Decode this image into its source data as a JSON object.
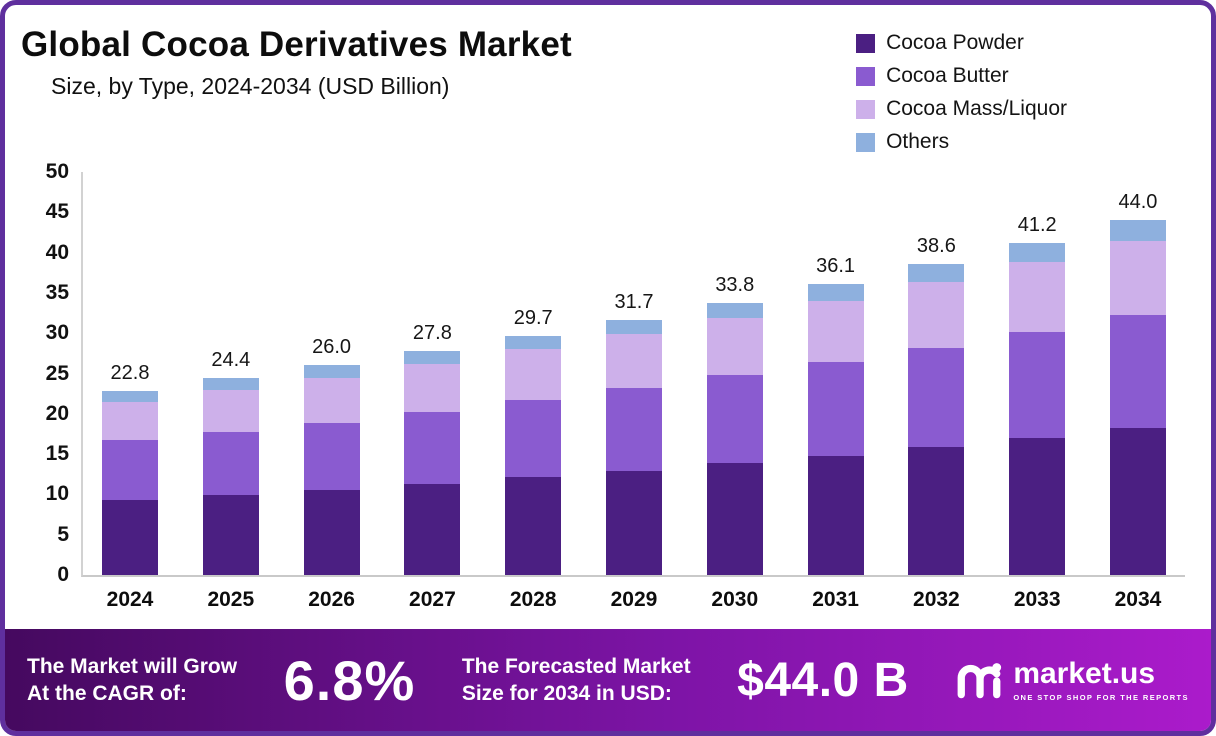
{
  "frame": {
    "border_color": "#5f2f9e",
    "background": "#ffffff"
  },
  "header": {
    "title": "Global Cocoa Derivatives Market",
    "subtitle": "Size, by Type, 2024-2034 (USD Billion)"
  },
  "chart_data": {
    "type": "bar",
    "stacked": true,
    "title": "Global Cocoa Derivatives Market Size, by Type, 2024-2034 (USD Billion)",
    "categories": [
      "2024",
      "2025",
      "2026",
      "2027",
      "2028",
      "2029",
      "2030",
      "2031",
      "2032",
      "2033",
      "2034"
    ],
    "series": [
      {
        "name": "Cocoa Powder",
        "color": "#4b1f82",
        "values": [
          9.3,
          9.9,
          10.6,
          11.3,
          12.1,
          12.9,
          13.9,
          14.8,
          15.9,
          17.0,
          18.2
        ]
      },
      {
        "name": "Cocoa Butter",
        "color": "#8a5bd0",
        "values": [
          7.4,
          7.8,
          8.3,
          8.9,
          9.6,
          10.3,
          10.9,
          11.6,
          12.3,
          13.1,
          14.0
        ]
      },
      {
        "name": "Cocoa Mass/Liquor",
        "color": "#cdb0ea",
        "values": [
          4.8,
          5.3,
          5.6,
          6.0,
          6.3,
          6.7,
          7.1,
          7.6,
          8.2,
          8.7,
          9.3
        ]
      },
      {
        "name": "Others",
        "color": "#8eb0de",
        "values": [
          1.3,
          1.4,
          1.5,
          1.6,
          1.7,
          1.8,
          1.9,
          2.1,
          2.2,
          2.4,
          2.5
        ]
      }
    ],
    "totals": [
      "22.8",
      "24.4",
      "26.0",
      "27.8",
      "29.7",
      "31.7",
      "33.8",
      "36.1",
      "38.6",
      "41.2",
      "44.0"
    ],
    "ylim": [
      0,
      50
    ],
    "ytick_step": 5,
    "legend_position": "top-right",
    "grid": false
  },
  "banner": {
    "cagr_label_line1": "The Market will Grow",
    "cagr_label_line2": "At the CAGR of:",
    "cagr_value": "6.8%",
    "forecast_label_line1": "The Forecasted Market",
    "forecast_label_line2": "Size for 2034 in USD:",
    "forecast_value": "$44.0 B",
    "brand": "market.us",
    "brand_tagline": "ONE STOP SHOP FOR THE REPORTS",
    "gradient_start": "#45095f",
    "gradient_mid": "#7d14a6",
    "gradient_end": "#ab1bcb"
  }
}
